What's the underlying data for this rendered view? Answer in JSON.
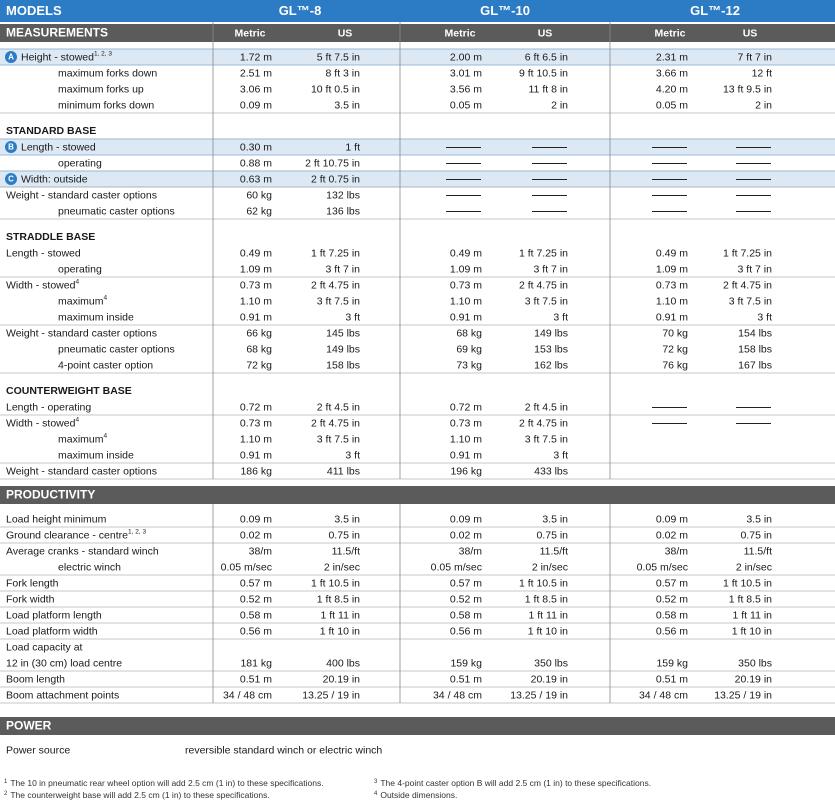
{
  "header": {
    "title": "MODELS",
    "models": [
      "GL™-8",
      "GL™-10",
      "GL™-12"
    ]
  },
  "sections": [
    {
      "title": "MEASUREMENTS",
      "columns": [
        "Metric",
        "US",
        "Metric",
        "US",
        "Metric",
        "US"
      ],
      "groups": [
        {
          "rows": [
            {
              "badge": "A",
              "label": "Height - stowed",
              "sup": "1, 2, 3",
              "values": [
                "1.72 m",
                "5 ft 7.5 in",
                "2.00 m",
                "6 ft 6.5 in",
                "2.31 m",
                "7 ft 7 in"
              ],
              "options": [
                {
                  "label": "maximum forks down",
                  "values": [
                    "2.51 m",
                    "8 ft 3 in",
                    "3.01 m",
                    "9 ft 10.5 in",
                    "3.66 m",
                    "12 ft"
                  ]
                },
                {
                  "label": "maximum forks up",
                  "values": [
                    "3.06 m",
                    "10 ft 0.5 in",
                    "3.56 m",
                    "11 ft 8 in",
                    "4.20 m",
                    "13 ft 9.5 in"
                  ]
                },
                {
                  "label": "minimum forks down",
                  "values": [
                    "0.09 m",
                    "3.5 in",
                    "0.05 m",
                    "2 in",
                    "0.05 m",
                    "2 in"
                  ]
                }
              ]
            }
          ]
        },
        {
          "title": "STANDARD BASE",
          "rows": [
            {
              "badge": "B",
              "label": "Length - stowed",
              "values": [
                "0.30 m",
                "1 ft",
                null,
                null,
                null,
                null
              ],
              "options": [
                {
                  "label": "operating",
                  "values": [
                    "0.88 m",
                    "2 ft 10.75 in",
                    null,
                    null,
                    null,
                    null
                  ]
                }
              ]
            },
            {
              "badge": "C",
              "label": "Width: outside",
              "values": [
                "0.63 m",
                "2 ft 0.75 in",
                null,
                null,
                null,
                null
              ]
            },
            {
              "label": "Weight - standard caster options",
              "values": [
                "60 kg",
                "132 lbs",
                null,
                null,
                null,
                null
              ],
              "options": [
                {
                  "label": "pneumatic caster options",
                  "values": [
                    "62 kg",
                    "136 lbs",
                    null,
                    null,
                    null,
                    null
                  ]
                }
              ]
            }
          ]
        },
        {
          "title": "STRADDLE BASE",
          "rows": [
            {
              "label": "Length - stowed",
              "values": [
                "0.49 m",
                "1 ft 7.25 in",
                "0.49 m",
                "1 ft 7.25 in",
                "0.49 m",
                "1 ft 7.25 in"
              ],
              "options": [
                {
                  "label": "operating",
                  "values": [
                    "1.09 m",
                    "3 ft 7 in",
                    "1.09 m",
                    "3 ft 7 in",
                    "1.09 m",
                    "3 ft 7 in"
                  ]
                }
              ]
            },
            {
              "label": "Width - stowed",
              "sup": "4",
              "values": [
                "0.73 m",
                "2 ft 4.75 in",
                "0.73 m",
                "2 ft 4.75 in",
                "0.73 m",
                "2 ft 4.75 in"
              ],
              "options": [
                {
                  "label": "maximum",
                  "sup": "4",
                  "values": [
                    "1.10 m",
                    "3 ft 7.5 in",
                    "1.10 m",
                    "3 ft 7.5 in",
                    "1.10 m",
                    "3 ft 7.5 in"
                  ]
                },
                {
                  "label": "maximum inside",
                  "values": [
                    "0.91 m",
                    "3 ft",
                    "0.91 m",
                    "3 ft",
                    "0.91 m",
                    "3 ft"
                  ]
                }
              ]
            },
            {
              "label": "Weight - standard caster options",
              "values": [
                "66 kg",
                "145 lbs",
                "68 kg",
                "149 lbs",
                "70 kg",
                "154 lbs"
              ],
              "options": [
                {
                  "label": "pneumatic caster options",
                  "values": [
                    "68 kg",
                    "149 lbs",
                    "69 kg",
                    "153 lbs",
                    "72 kg",
                    "158 lbs"
                  ]
                },
                {
                  "label": "4-point caster option",
                  "values": [
                    "72 kg",
                    "158 lbs",
                    "73 kg",
                    "162 lbs",
                    "76 kg",
                    "167 lbs"
                  ]
                }
              ]
            }
          ]
        },
        {
          "title": "COUNTERWEIGHT BASE",
          "rows": [
            {
              "label": "Length - operating",
              "values": [
                "0.72 m",
                "2 ft 4.5 in",
                "0.72 m",
                "2 ft 4.5 in",
                null,
                null
              ]
            },
            {
              "label": "Width - stowed",
              "sup": "4",
              "values": [
                "0.73 m",
                "2 ft 4.75 in",
                "0.73 m",
                "2 ft 4.75 in",
                null,
                null
              ],
              "options": [
                {
                  "label": "maximum",
                  "sup": "4",
                  "values": [
                    "1.10 m",
                    "3 ft 7.5 in",
                    "1.10 m",
                    "3 ft 7.5 in"
                  ]
                },
                {
                  "label": "maximum inside",
                  "values": [
                    "0.91 m",
                    "3 ft",
                    "0.91 m",
                    "3 ft"
                  ]
                }
              ]
            },
            {
              "label": "Weight - standard caster options",
              "values": [
                "186 kg",
                "411 lbs",
                "196 kg",
                "433 lbs"
              ]
            }
          ]
        }
      ]
    },
    {
      "title": "PRODUCTIVITY",
      "groups": [
        {
          "rows": [
            {
              "label": "Load height minimum",
              "values": [
                "0.09 m",
                "3.5 in",
                "0.09 m",
                "3.5 in",
                "0.09 m",
                "3.5 in"
              ]
            },
            {
              "label": "Ground clearance - centre",
              "sup": "1, 2, 3",
              "values": [
                "0.02 m",
                "0.75 in",
                "0.02 m",
                "0.75 in",
                "0.02 m",
                "0.75 in"
              ]
            },
            {
              "label": "Average cranks - standard winch",
              "values": [
                "38/m",
                "11.5/ft",
                "38/m",
                "11.5/ft",
                "38/m",
                "11.5/ft"
              ],
              "options": [
                {
                  "label": "electric winch",
                  "values": [
                    "0.05 m/sec",
                    "2 in/sec",
                    "0.05 m/sec",
                    "2 in/sec",
                    "0.05 m/sec",
                    "2 in/sec"
                  ]
                }
              ]
            },
            {
              "label": "Fork length",
              "values": [
                "0.57 m",
                "1 ft 10.5 in",
                "0.57 m",
                "1 ft 10.5 in",
                "0.57 m",
                "1 ft 10.5 in"
              ]
            },
            {
              "label": "Fork width",
              "values": [
                "0.52 m",
                "1 ft 8.5 in",
                "0.52 m",
                "1 ft 8.5 in",
                "0.52 m",
                "1 ft 8.5 in"
              ]
            },
            {
              "label": "Load platform length",
              "values": [
                "0.58 m",
                "1 ft 11 in",
                "0.58 m",
                "1 ft 11 in",
                "0.58 m",
                "1 ft 11 in"
              ]
            },
            {
              "label": "Load platform width",
              "values": [
                "0.56 m",
                "1 ft 10 in",
                "0.56 m",
                "1 ft 10 in",
                "0.56 m",
                "1 ft 10 in"
              ]
            },
            {
              "label": [
                "Load capacity at",
                "12 in (30 cm) load centre"
              ],
              "values": [
                "181 kg",
                "400 lbs",
                "159 kg",
                "350 lbs",
                "159 kg",
                "350 lbs"
              ]
            },
            {
              "label": "Boom length",
              "values": [
                "0.51 m",
                "20.19 in",
                "0.51 m",
                "20.19 in",
                "0.51 m",
                "20.19 in"
              ]
            },
            {
              "label": "Boom attachment points",
              "values": [
                "34 / 48 cm",
                "13.25 / 19 in",
                "34 / 48 cm",
                "13.25 / 19 in",
                "34 / 48 cm",
                "13.25 / 19 in"
              ]
            }
          ]
        }
      ]
    },
    {
      "title": "POWER",
      "groups": [
        {
          "rows": [
            {
              "label": "Power source",
              "text": "reversible standard winch or electric winch"
            }
          ]
        }
      ]
    }
  ],
  "footnotes": [
    {
      "mark": "1",
      "text": "The 10 in pneumatic rear wheel option will add 2.5 cm (1 in) to these specifications."
    },
    {
      "mark": "2",
      "text": "The counterweight base will add 2.5 cm (1 in) to these specifications."
    },
    {
      "mark": "3",
      "text": "The 4-point caster option B will add 2.5 cm (1 in) to these specifications."
    },
    {
      "mark": "4",
      "text": "Outside dimensions."
    }
  ]
}
